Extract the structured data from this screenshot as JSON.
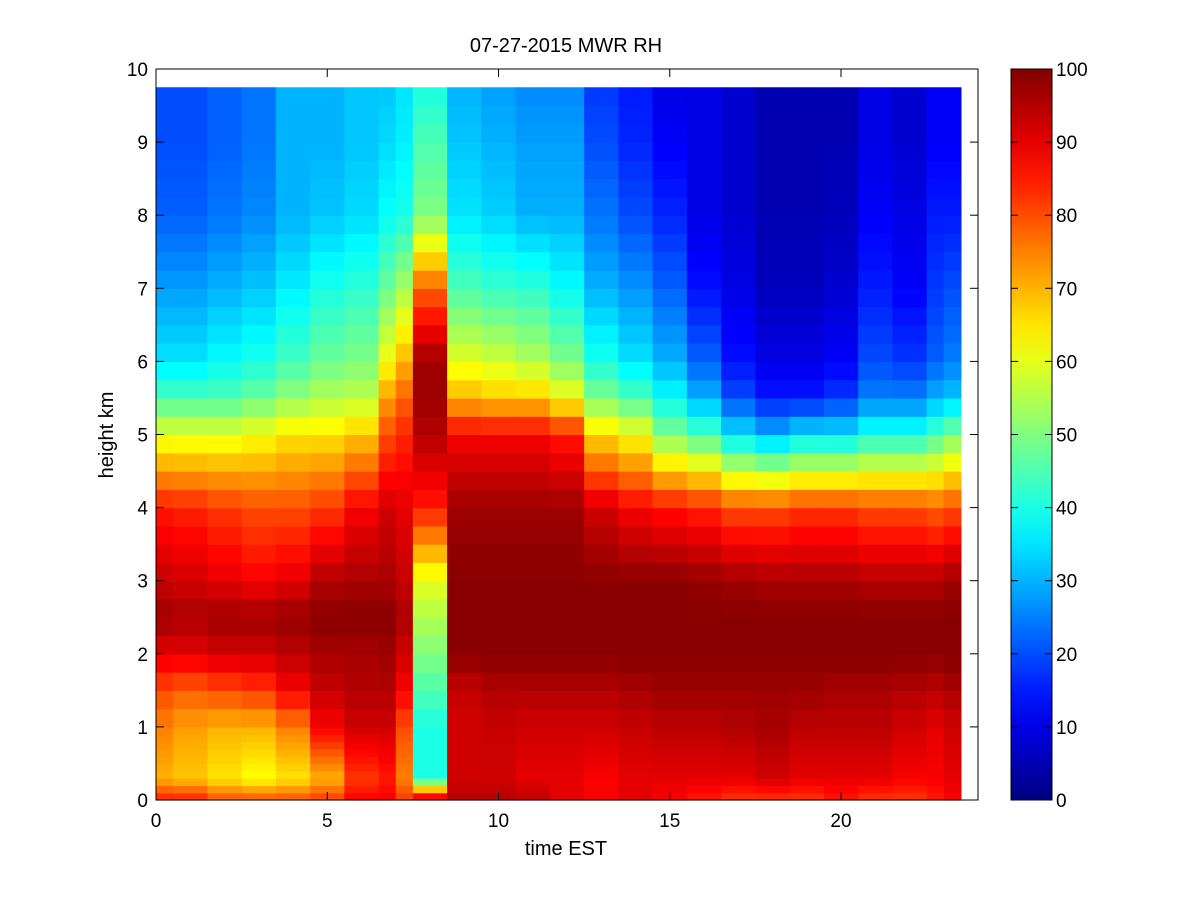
{
  "chart_data": {
    "type": "heatmap",
    "title": "07-27-2015 MWR RH",
    "xlabel": "time EST",
    "ylabel": "height km",
    "xlim": [
      0,
      24
    ],
    "ylim": [
      0,
      10
    ],
    "xticks": [
      0,
      5,
      10,
      15,
      20
    ],
    "yticks": [
      0,
      1,
      2,
      3,
      4,
      5,
      6,
      7,
      8,
      9,
      10
    ],
    "colormap": "jet",
    "clim": [
      0,
      100
    ],
    "colorbar_ticks": [
      0,
      10,
      20,
      30,
      40,
      50,
      60,
      70,
      80,
      90,
      100
    ],
    "colorbar_position": "right",
    "grid": false,
    "x": [
      0.25,
      0.75,
      1.75,
      2.75,
      3.75,
      4.75,
      5.75,
      6.75,
      7.5,
      8,
      8.75,
      9.75,
      10.75,
      11.75,
      12.75,
      13.75,
      14.75,
      15.75,
      16.75,
      17.75,
      18.75,
      19.75,
      20.75,
      21.75,
      22.75,
      23.25
    ],
    "x_edges": [
      0,
      0.5,
      1.5,
      2.5,
      3.5,
      4.5,
      5.5,
      6.5,
      7.5,
      7.5,
      8.5,
      9.5,
      10.5,
      11.5,
      12.5,
      13.5,
      14.5,
      15.5,
      16.5,
      17.5,
      18.5,
      19.5,
      20.5,
      21.5,
      22.5,
      23.5
    ],
    "y_levels_km": [
      0,
      0.1,
      0.2,
      0.3,
      0.4,
      0.5,
      0.6,
      0.7,
      0.8,
      0.9,
      1.0,
      1.25,
      1.5,
      1.75,
      2.0,
      2.25,
      2.5,
      2.75,
      3.0,
      3.25,
      3.5,
      3.75,
      4.0,
      4.25,
      4.5,
      4.75,
      5.0,
      5.25,
      5.5,
      5.75,
      6.0,
      6.25,
      6.5,
      6.75,
      7.0,
      7.25,
      7.5,
      7.75,
      8.0,
      8.25,
      8.5,
      8.75,
      9.0,
      9.25,
      9.5,
      9.75
    ],
    "profile_anchor_heights_km": [
      0,
      0.3,
      1,
      1.5,
      2,
      2.5,
      3,
      4,
      5,
      5.5,
      6,
      7,
      8,
      9,
      9.75
    ],
    "rh_profiles": [
      [
        85,
        70,
        75,
        80,
        90,
        97,
        93,
        85,
        60,
        45,
        35,
        28,
        22,
        20,
        20
      ],
      [
        85,
        68,
        72,
        78,
        90,
        96,
        92,
        84,
        60,
        45,
        35,
        28,
        22,
        20,
        20
      ],
      [
        80,
        65,
        70,
        80,
        92,
        97,
        90,
        82,
        60,
        45,
        38,
        30,
        24,
        22,
        22
      ],
      [
        80,
        62,
        70,
        82,
        92,
        97,
        88,
        80,
        62,
        48,
        40,
        32,
        26,
        24,
        24
      ],
      [
        80,
        65,
        75,
        88,
        94,
        98,
        90,
        80,
        65,
        52,
        44,
        36,
        30,
        30,
        30
      ],
      [
        82,
        70,
        88,
        93,
        96,
        99,
        95,
        82,
        65,
        55,
        48,
        40,
        32,
        30,
        30
      ],
      [
        88,
        82,
        92,
        95,
        96,
        99,
        96,
        88,
        68,
        56,
        50,
        42,
        34,
        32,
        32
      ],
      [
        88,
        85,
        92,
        95,
        97,
        99,
        96,
        92,
        80,
        72,
        62,
        48,
        38,
        34,
        32
      ],
      [
        82,
        75,
        80,
        88,
        92,
        96,
        93,
        90,
        84,
        78,
        70,
        54,
        40,
        36,
        35
      ],
      [
        96,
        40,
        40,
        45,
        50,
        55,
        60,
        85,
        95,
        97,
        97,
        78,
        50,
        45,
        40
      ],
      [
        95,
        92,
        92,
        93,
        99,
        99,
        99,
        97,
        88,
        70,
        60,
        45,
        35,
        32,
        30
      ],
      [
        95,
        92,
        93,
        95,
        99,
        99,
        99,
        97,
        88,
        68,
        58,
        43,
        33,
        30,
        28
      ],
      [
        94,
        90,
        92,
        95,
        99,
        99,
        99,
        97,
        88,
        68,
        55,
        42,
        30,
        28,
        26
      ],
      [
        90,
        90,
        92,
        95,
        99,
        99,
        99,
        97,
        85,
        62,
        50,
        38,
        30,
        28,
        26
      ],
      [
        88,
        88,
        92,
        95,
        99,
        99,
        99,
        92,
        66,
        50,
        40,
        30,
        24,
        20,
        18
      ],
      [
        90,
        90,
        93,
        96,
        99,
        99,
        99,
        88,
        62,
        45,
        35,
        27,
        20,
        16,
        15
      ],
      [
        88,
        90,
        94,
        97,
        99,
        99,
        99,
        86,
        50,
        38,
        30,
        22,
        16,
        12,
        10
      ],
      [
        85,
        90,
        94,
        97,
        99,
        99,
        98,
        84,
        45,
        30,
        22,
        14,
        10,
        10,
        10
      ],
      [
        82,
        90,
        95,
        97,
        99,
        99,
        97,
        80,
        35,
        20,
        14,
        10,
        8,
        8,
        8
      ],
      [
        82,
        92,
        96,
        97,
        99,
        99,
        96,
        80,
        30,
        15,
        10,
        6,
        5,
        5,
        5
      ],
      [
        82,
        90,
        94,
        97,
        99,
        99,
        96,
        82,
        35,
        15,
        10,
        6,
        5,
        5,
        5
      ],
      [
        85,
        90,
        94,
        96,
        99,
        99,
        96,
        82,
        35,
        18,
        12,
        8,
        6,
        5,
        5
      ],
      [
        82,
        90,
        94,
        96,
        99,
        99,
        95,
        80,
        40,
        25,
        20,
        15,
        12,
        10,
        10
      ],
      [
        82,
        88,
        92,
        95,
        99,
        99,
        95,
        80,
        40,
        25,
        18,
        12,
        10,
        8,
        8
      ],
      [
        85,
        88,
        90,
        94,
        99,
        99,
        95,
        78,
        45,
        30,
        22,
        18,
        15,
        12,
        12
      ],
      [
        88,
        90,
        92,
        96,
        99,
        99,
        97,
        80,
        50,
        32,
        25,
        20,
        15,
        12,
        12
      ]
    ]
  }
}
